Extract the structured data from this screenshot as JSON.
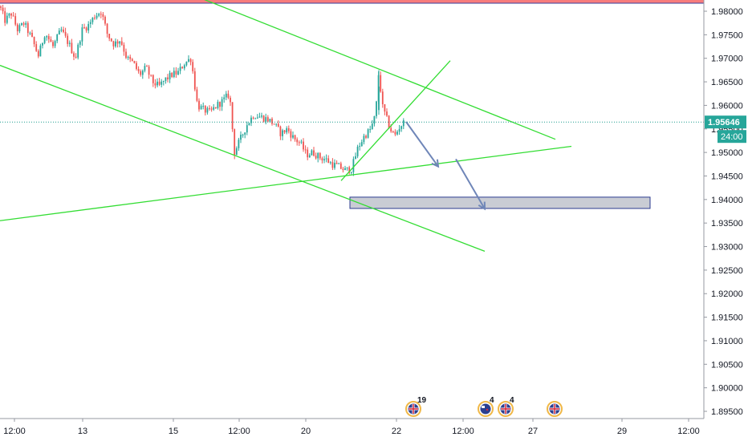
{
  "chart_data": {
    "type": "candlestick",
    "title": "",
    "xlabel": "",
    "ylabel": "",
    "ylim": [
      1.893,
      1.984
    ],
    "y_ticks": [
      "1.98000",
      "1.97500",
      "1.97000",
      "1.96500",
      "1.96000",
      "1.95500",
      "1.95000",
      "1.94500",
      "1.94000",
      "1.93500",
      "1.93000",
      "1.92500",
      "1.92000",
      "1.91500",
      "1.91000",
      "1.90500",
      "1.90000",
      "1.89500"
    ],
    "x_ticks": [
      "12:00",
      "13",
      "15",
      "12:00",
      "20",
      "22",
      "12:00",
      "27",
      "29",
      "12:00"
    ],
    "current_price": "1.95646",
    "countdown": "24:00",
    "grid": false,
    "colors": {
      "up": "#26a69a",
      "down": "#ef5350",
      "trendline": "#33dd33",
      "arrow": "#6f86b8",
      "zone_fill": "#c9ccd4",
      "zone_border": "#2b3a8f",
      "resistance_band": "#f77c7c",
      "price_label_bg": "#26a69a",
      "price_line": "#1f9d8f"
    },
    "candle_path": [
      [
        0,
        1.981
      ],
      [
        6,
        1.978
      ],
      [
        14,
        1.9795
      ],
      [
        22,
        1.976
      ],
      [
        30,
        1.9775
      ],
      [
        40,
        1.974
      ],
      [
        48,
        1.9705
      ],
      [
        56,
        1.9755
      ],
      [
        66,
        1.9725
      ],
      [
        76,
        1.976
      ],
      [
        86,
        1.973
      ],
      [
        94,
        1.97
      ],
      [
        102,
        1.976
      ],
      [
        110,
        1.977
      ],
      [
        118,
        1.979
      ],
      [
        126,
        1.98
      ],
      [
        134,
        1.975
      ],
      [
        142,
        1.973
      ],
      [
        150,
        1.974
      ],
      [
        158,
        1.97
      ],
      [
        166,
        1.969
      ],
      [
        174,
        1.9665
      ],
      [
        182,
        1.968
      ],
      [
        190,
        1.965
      ],
      [
        198,
        1.964
      ],
      [
        206,
        1.9655
      ],
      [
        214,
        1.9665
      ],
      [
        222,
        1.967
      ],
      [
        230,
        1.969
      ],
      [
        238,
        1.97
      ],
      [
        246,
        1.96
      ],
      [
        254,
        1.959
      ],
      [
        262,
        1.9585
      ],
      [
        270,
        1.96
      ],
      [
        278,
        1.961
      ],
      [
        286,
        1.9625
      ],
      [
        292,
        1.95
      ],
      [
        300,
        1.953
      ],
      [
        308,
        1.956
      ],
      [
        316,
        1.958
      ],
      [
        326,
        1.9575
      ],
      [
        334,
        1.957
      ],
      [
        342,
        1.956
      ],
      [
        350,
        1.954
      ],
      [
        358,
        1.955
      ],
      [
        366,
        1.953
      ],
      [
        374,
        1.952
      ],
      [
        382,
        1.9495
      ],
      [
        390,
        1.95
      ],
      [
        398,
        1.949
      ],
      [
        406,
        1.9485
      ],
      [
        414,
        1.9475
      ],
      [
        422,
        1.947
      ],
      [
        430,
        1.9462
      ],
      [
        438,
        1.9465
      ],
      [
        446,
        1.951
      ],
      [
        454,
        1.9535
      ],
      [
        462,
        1.955
      ],
      [
        468,
        1.958
      ],
      [
        472,
        1.9675
      ],
      [
        476,
        1.96
      ],
      [
        480,
        1.958
      ],
      [
        486,
        1.955
      ],
      [
        492,
        1.9535
      ],
      [
        498,
        1.9555
      ],
      [
        504,
        1.9565
      ]
    ],
    "trendlines": [
      {
        "from": [
          188,
          1.987
        ],
        "to": [
          692,
          1.9528
        ]
      },
      {
        "from": [
          0,
          1.9685
        ],
        "to": [
          604,
          1.929
        ]
      },
      {
        "from": [
          0,
          1.9355
        ],
        "to": [
          712,
          1.9513
        ]
      },
      {
        "from": [
          425,
          1.944
        ],
        "to": [
          561,
          1.9695
        ]
      }
    ],
    "arrows": [
      {
        "from": [
          506,
          1.9565
        ],
        "to": [
          546,
          1.947
        ]
      },
      {
        "from": [
          568,
          1.9486
        ],
        "to": [
          604,
          1.938
        ]
      }
    ],
    "zone": {
      "x_from": 436,
      "x_to": 810,
      "y_from": 1.9405,
      "y_to": 1.9381
    },
    "resistance_band": {
      "y_from": 1.984,
      "y_to": 1.9817
    },
    "events": [
      {
        "count": "19",
        "kind": "uk-flag"
      },
      {
        "count": "4",
        "kind": "nz-flag"
      },
      {
        "count": "4",
        "kind": "uk-flag"
      },
      {
        "count": "",
        "kind": "uk-flag"
      }
    ]
  }
}
